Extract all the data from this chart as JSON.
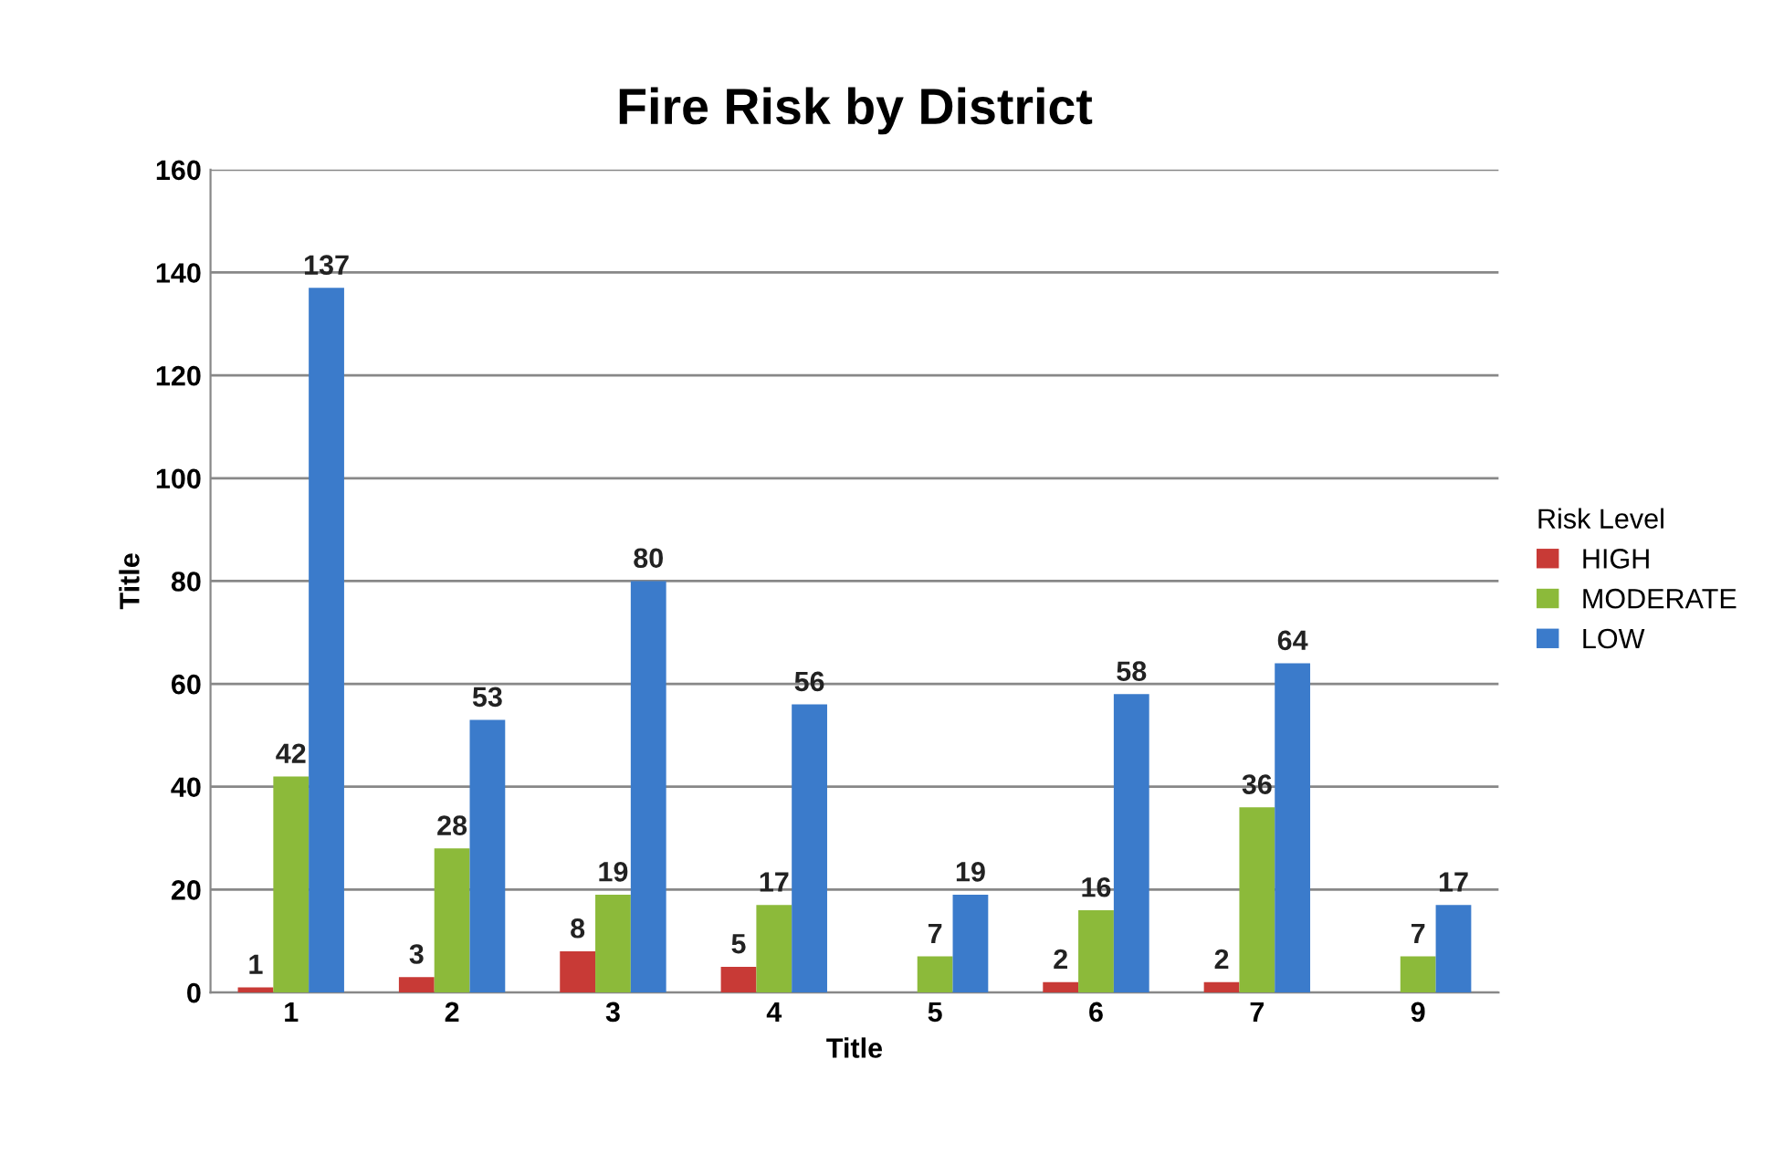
{
  "chart_data": {
    "type": "bar",
    "title": "Fire Risk by District",
    "xlabel": "Title",
    "ylabel": "Title",
    "legend_title": "Risk Level",
    "categories": [
      "1",
      "2",
      "3",
      "4",
      "5",
      "6",
      "7",
      "9"
    ],
    "series": [
      {
        "name": "HIGH",
        "color": "#c83a36",
        "values": [
          1,
          3,
          8,
          5,
          null,
          2,
          2,
          null
        ]
      },
      {
        "name": "MODERATE",
        "color": "#8cba3a",
        "values": [
          42,
          28,
          19,
          17,
          7,
          16,
          36,
          7
        ]
      },
      {
        "name": "LOW",
        "color": "#3b7bcb",
        "values": [
          137,
          53,
          80,
          56,
          19,
          58,
          64,
          17
        ]
      }
    ],
    "ylim": [
      0,
      160
    ],
    "yticks": [
      0,
      20,
      40,
      60,
      80,
      100,
      120,
      140,
      160
    ],
    "grid": "y",
    "legend": "right",
    "data_labels": true
  }
}
